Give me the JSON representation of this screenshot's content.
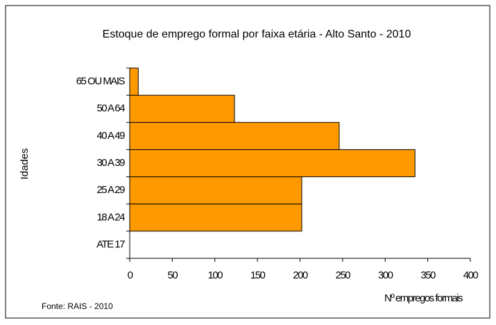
{
  "chart_data": {
    "type": "barh",
    "title": "Estoque de emprego formal por faixa etária - Alto Santo - 2010",
    "xlabel": "Nº empregos formais",
    "ylabel": "Idades",
    "source": "Fonte: RAIS - 2010",
    "categories": [
      "ATE 17",
      "18 A 24",
      "25 A 29",
      "30 A 39",
      "40 A 49",
      "50 A 64",
      "65 OU MAIS"
    ],
    "values": [
      0,
      202,
      202,
      335,
      246,
      123,
      10
    ],
    "color": "#ff9900",
    "xlim": [
      0,
      400
    ],
    "xticks": [
      0,
      50,
      100,
      150,
      200,
      250,
      300,
      350,
      400
    ],
    "grid": false
  }
}
